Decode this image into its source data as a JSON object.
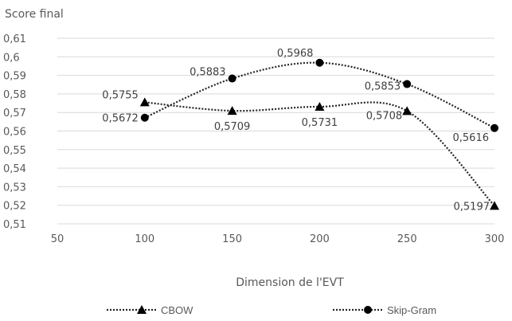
{
  "chart_data": {
    "type": "line",
    "ylabel": "Score final",
    "xlabel": "Dimension de l'EVT",
    "x": [
      100,
      150,
      200,
      250,
      300
    ],
    "xlim": [
      50,
      300
    ],
    "xticks": [
      50,
      100,
      150,
      200,
      250,
      300
    ],
    "xtick_labels": [
      "50",
      "100",
      "150",
      "200",
      "250",
      "300"
    ],
    "ylim": [
      0.51,
      0.61
    ],
    "yticks": [
      0.51,
      0.52,
      0.53,
      0.54,
      0.55,
      0.56,
      0.57,
      0.58,
      0.59,
      0.6,
      0.61
    ],
    "ytick_labels": [
      "0,51",
      "0,52",
      "0,53",
      "0,54",
      "0,55",
      "0,56",
      "0,57",
      "0,58",
      "0,59",
      "0,6",
      "0,61"
    ],
    "grid": "horizontal",
    "legend_position": "bottom",
    "smoothed": true,
    "series": [
      {
        "name": "CBOW",
        "marker": "triangle",
        "line_style": "dotted",
        "color": "#262626",
        "values": [
          0.5755,
          0.5709,
          0.5731,
          0.5708,
          0.5197
        ],
        "labels": [
          "0,5755",
          "0,5709",
          "0,5731",
          "0,5708",
          "0,5197"
        ]
      },
      {
        "name": "Skip-Gram",
        "marker": "circle",
        "line_style": "dotted",
        "color": "#262626",
        "values": [
          0.5672,
          0.5883,
          0.5968,
          0.5853,
          0.5616
        ],
        "labels": [
          "0,5672",
          "0,5883",
          "0,5968",
          "0,5853",
          "0,5616"
        ]
      }
    ]
  }
}
